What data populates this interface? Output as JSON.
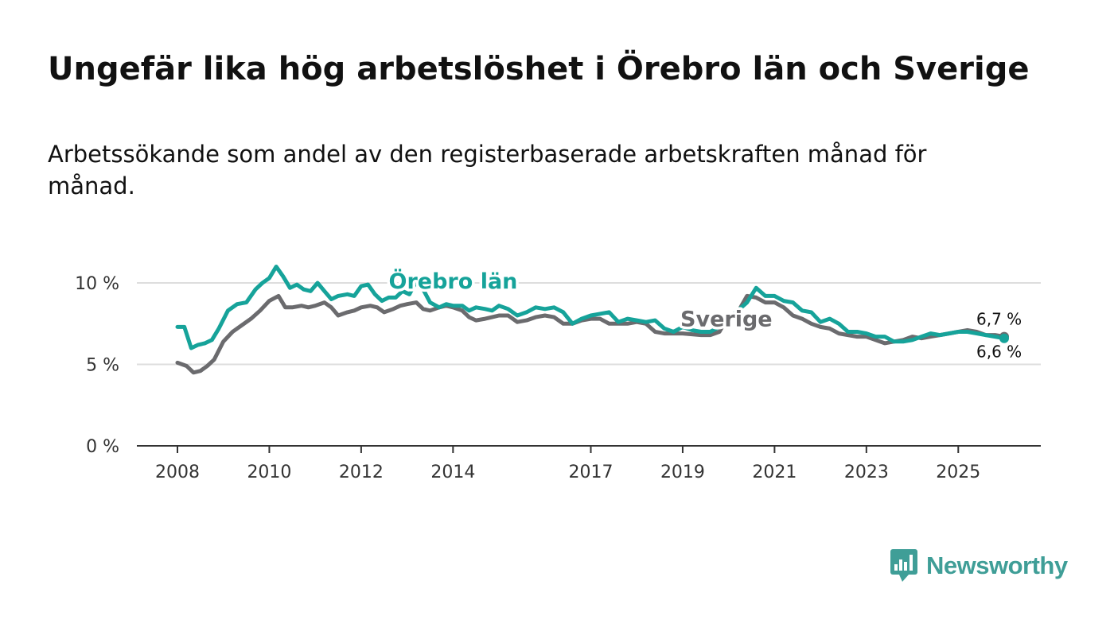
{
  "colors": {
    "orebro": "#16a39a",
    "sverige": "#6b6b6e",
    "grid": "#dddddd",
    "axis": "#333333",
    "brand": "#3f9e97"
  },
  "branding": {
    "name": "Newsworthy",
    "icon": "bar-chart-speech-bubble-icon"
  },
  "chart_data": {
    "type": "line",
    "title": "Ungefär lika hög arbetslöshet i Örebro län och Sverige",
    "subtitle": "Arbetssökande som andel av den registerbaserade arbetskraften månad för månad.",
    "xlabel": "",
    "ylabel": "",
    "ylim": [
      0,
      10
    ],
    "xlim": [
      2008,
      2026.3
    ],
    "y_ticks": [
      {
        "value": 0,
        "label": "0 %"
      },
      {
        "value": 5,
        "label": "5 %"
      },
      {
        "value": 10,
        "label": "10 %"
      }
    ],
    "x_ticks": [
      {
        "value": 2008,
        "label": "2008"
      },
      {
        "value": 2010,
        "label": "2010"
      },
      {
        "value": 2012,
        "label": "2012"
      },
      {
        "value": 2014,
        "label": "2014"
      },
      {
        "value": 2017,
        "label": "2017"
      },
      {
        "value": 2019,
        "label": "2019"
      },
      {
        "value": 2021,
        "label": "2021"
      },
      {
        "value": 2023,
        "label": "2023"
      },
      {
        "value": 2025,
        "label": "2025"
      }
    ],
    "grid": true,
    "series": [
      {
        "name": "Sverige",
        "label": "Sverige",
        "color": "#6b6b6e",
        "end_label": "6,7 %",
        "x": [
          2008.0,
          2008.2,
          2008.35,
          2008.5,
          2008.65,
          2008.8,
          2009.0,
          2009.2,
          2009.4,
          2009.6,
          2009.8,
          2010.0,
          2010.2,
          2010.35,
          2010.5,
          2010.7,
          2010.85,
          2011.0,
          2011.2,
          2011.35,
          2011.5,
          2011.7,
          2011.85,
          2012.0,
          2012.2,
          2012.35,
          2012.5,
          2012.7,
          2012.85,
          2013.0,
          2013.2,
          2013.35,
          2013.5,
          2013.7,
          2013.85,
          2014.0,
          2014.2,
          2014.35,
          2014.5,
          2014.7,
          2014.85,
          2015.0,
          2015.2,
          2015.4,
          2015.6,
          2015.8,
          2016.0,
          2016.2,
          2016.4,
          2016.6,
          2016.8,
          2017.0,
          2017.2,
          2017.4,
          2017.6,
          2017.8,
          2018.0,
          2018.2,
          2018.4,
          2018.6,
          2018.8,
          2019.0,
          2019.2,
          2019.4,
          2019.6,
          2019.8,
          2020.0,
          2020.2,
          2020.4,
          2020.6,
          2020.8,
          2021.0,
          2021.2,
          2021.4,
          2021.6,
          2021.8,
          2022.0,
          2022.2,
          2022.4,
          2022.6,
          2022.8,
          2023.0,
          2023.2,
          2023.4,
          2023.6,
          2023.8,
          2024.0,
          2024.2,
          2024.4,
          2024.6,
          2024.8,
          2025.0,
          2025.2,
          2025.4,
          2025.6,
          2025.8,
          2026.0
        ],
        "y": [
          5.1,
          4.9,
          4.5,
          4.6,
          4.9,
          5.3,
          6.4,
          7.0,
          7.4,
          7.8,
          8.3,
          8.9,
          9.2,
          8.5,
          8.5,
          8.6,
          8.5,
          8.6,
          8.8,
          8.5,
          8.0,
          8.2,
          8.3,
          8.5,
          8.6,
          8.5,
          8.2,
          8.4,
          8.6,
          8.7,
          8.8,
          8.4,
          8.3,
          8.5,
          8.6,
          8.5,
          8.3,
          7.9,
          7.7,
          7.8,
          7.9,
          8.0,
          8.0,
          7.6,
          7.7,
          7.9,
          8.0,
          7.9,
          7.5,
          7.5,
          7.7,
          7.8,
          7.8,
          7.5,
          7.5,
          7.5,
          7.6,
          7.5,
          7.0,
          6.9,
          6.9,
          6.9,
          6.85,
          6.8,
          6.8,
          7.0,
          8.0,
          8.2,
          9.2,
          9.1,
          8.8,
          8.8,
          8.5,
          8.0,
          7.8,
          7.5,
          7.3,
          7.2,
          6.9,
          6.8,
          6.7,
          6.7,
          6.5,
          6.3,
          6.4,
          6.5,
          6.7,
          6.6,
          6.7,
          6.8,
          6.9,
          7.0,
          7.1,
          7.0,
          6.8,
          6.8,
          6.7
        ]
      },
      {
        "name": "Örebro län",
        "label": "Örebro län",
        "color": "#16a39a",
        "end_label": "6,6 %",
        "x": [
          2008.0,
          2008.15,
          2008.3,
          2008.45,
          2008.6,
          2008.75,
          2008.9,
          2009.1,
          2009.3,
          2009.5,
          2009.7,
          2009.85,
          2010.0,
          2010.15,
          2010.3,
          2010.45,
          2010.6,
          2010.75,
          2010.9,
          2011.05,
          2011.2,
          2011.35,
          2011.5,
          2011.7,
          2011.85,
          2012.0,
          2012.15,
          2012.3,
          2012.45,
          2012.6,
          2012.75,
          2012.9,
          2013.05,
          2013.2,
          2013.35,
          2013.5,
          2013.7,
          2013.85,
          2014.0,
          2014.2,
          2014.35,
          2014.5,
          2014.7,
          2014.85,
          2015.0,
          2015.2,
          2015.4,
          2015.6,
          2015.8,
          2016.0,
          2016.2,
          2016.4,
          2016.6,
          2016.8,
          2017.0,
          2017.2,
          2017.4,
          2017.6,
          2017.8,
          2018.0,
          2018.2,
          2018.4,
          2018.6,
          2018.8,
          2019.0,
          2019.2,
          2019.4,
          2019.6,
          2019.8,
          2020.0,
          2020.2,
          2020.4,
          2020.6,
          2020.8,
          2021.0,
          2021.2,
          2021.4,
          2021.6,
          2021.8,
          2022.0,
          2022.2,
          2022.4,
          2022.6,
          2022.8,
          2023.0,
          2023.2,
          2023.4,
          2023.6,
          2023.8,
          2024.0,
          2024.2,
          2024.4,
          2024.6,
          2024.8,
          2025.0,
          2025.2,
          2025.4,
          2025.6,
          2025.8,
          2026.0
        ],
        "y": [
          7.3,
          7.3,
          6.0,
          6.2,
          6.3,
          6.5,
          7.2,
          8.3,
          8.7,
          8.8,
          9.6,
          10.0,
          10.3,
          11.0,
          10.4,
          9.7,
          9.9,
          9.6,
          9.5,
          10.0,
          9.5,
          9.0,
          9.2,
          9.3,
          9.2,
          9.8,
          9.9,
          9.3,
          8.9,
          9.1,
          9.1,
          9.5,
          9.3,
          10.1,
          9.6,
          8.8,
          8.5,
          8.7,
          8.6,
          8.6,
          8.3,
          8.5,
          8.4,
          8.3,
          8.6,
          8.4,
          8.0,
          8.2,
          8.5,
          8.4,
          8.5,
          8.2,
          7.5,
          7.8,
          8.0,
          8.1,
          8.2,
          7.6,
          7.8,
          7.7,
          7.6,
          7.7,
          7.2,
          7.0,
          7.3,
          7.1,
          7.0,
          7.0,
          7.3,
          7.8,
          8.3,
          8.8,
          9.7,
          9.2,
          9.2,
          8.9,
          8.8,
          8.3,
          8.2,
          7.6,
          7.8,
          7.5,
          7.0,
          7.0,
          6.9,
          6.7,
          6.7,
          6.4,
          6.4,
          6.5,
          6.7,
          6.9,
          6.8,
          6.9,
          7.0,
          7.0,
          6.9,
          6.8,
          6.7,
          6.6
        ]
      }
    ]
  }
}
